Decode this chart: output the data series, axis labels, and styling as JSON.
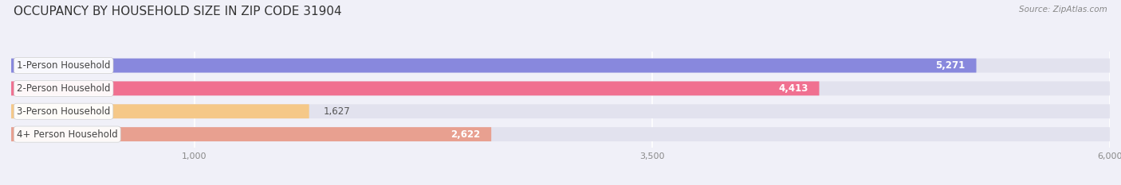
{
  "title": "OCCUPANCY BY HOUSEHOLD SIZE IN ZIP CODE 31904",
  "source": "Source: ZipAtlas.com",
  "categories": [
    "1-Person Household",
    "2-Person Household",
    "3-Person Household",
    "4+ Person Household"
  ],
  "values": [
    5271,
    4413,
    1627,
    2622
  ],
  "bar_colors": [
    "#8888dd",
    "#f07090",
    "#f5c888",
    "#e8a090"
  ],
  "background_color": "#f0f0f8",
  "bar_bg_color": "#e2e2ee",
  "xlim": [
    0,
    6000
  ],
  "xticks": [
    1000,
    3500,
    6000
  ],
  "label_fontsize": 8.5,
  "value_fontsize": 8.5,
  "title_fontsize": 11,
  "bar_height": 0.62,
  "figsize": [
    14.06,
    2.33
  ],
  "dpi": 100
}
